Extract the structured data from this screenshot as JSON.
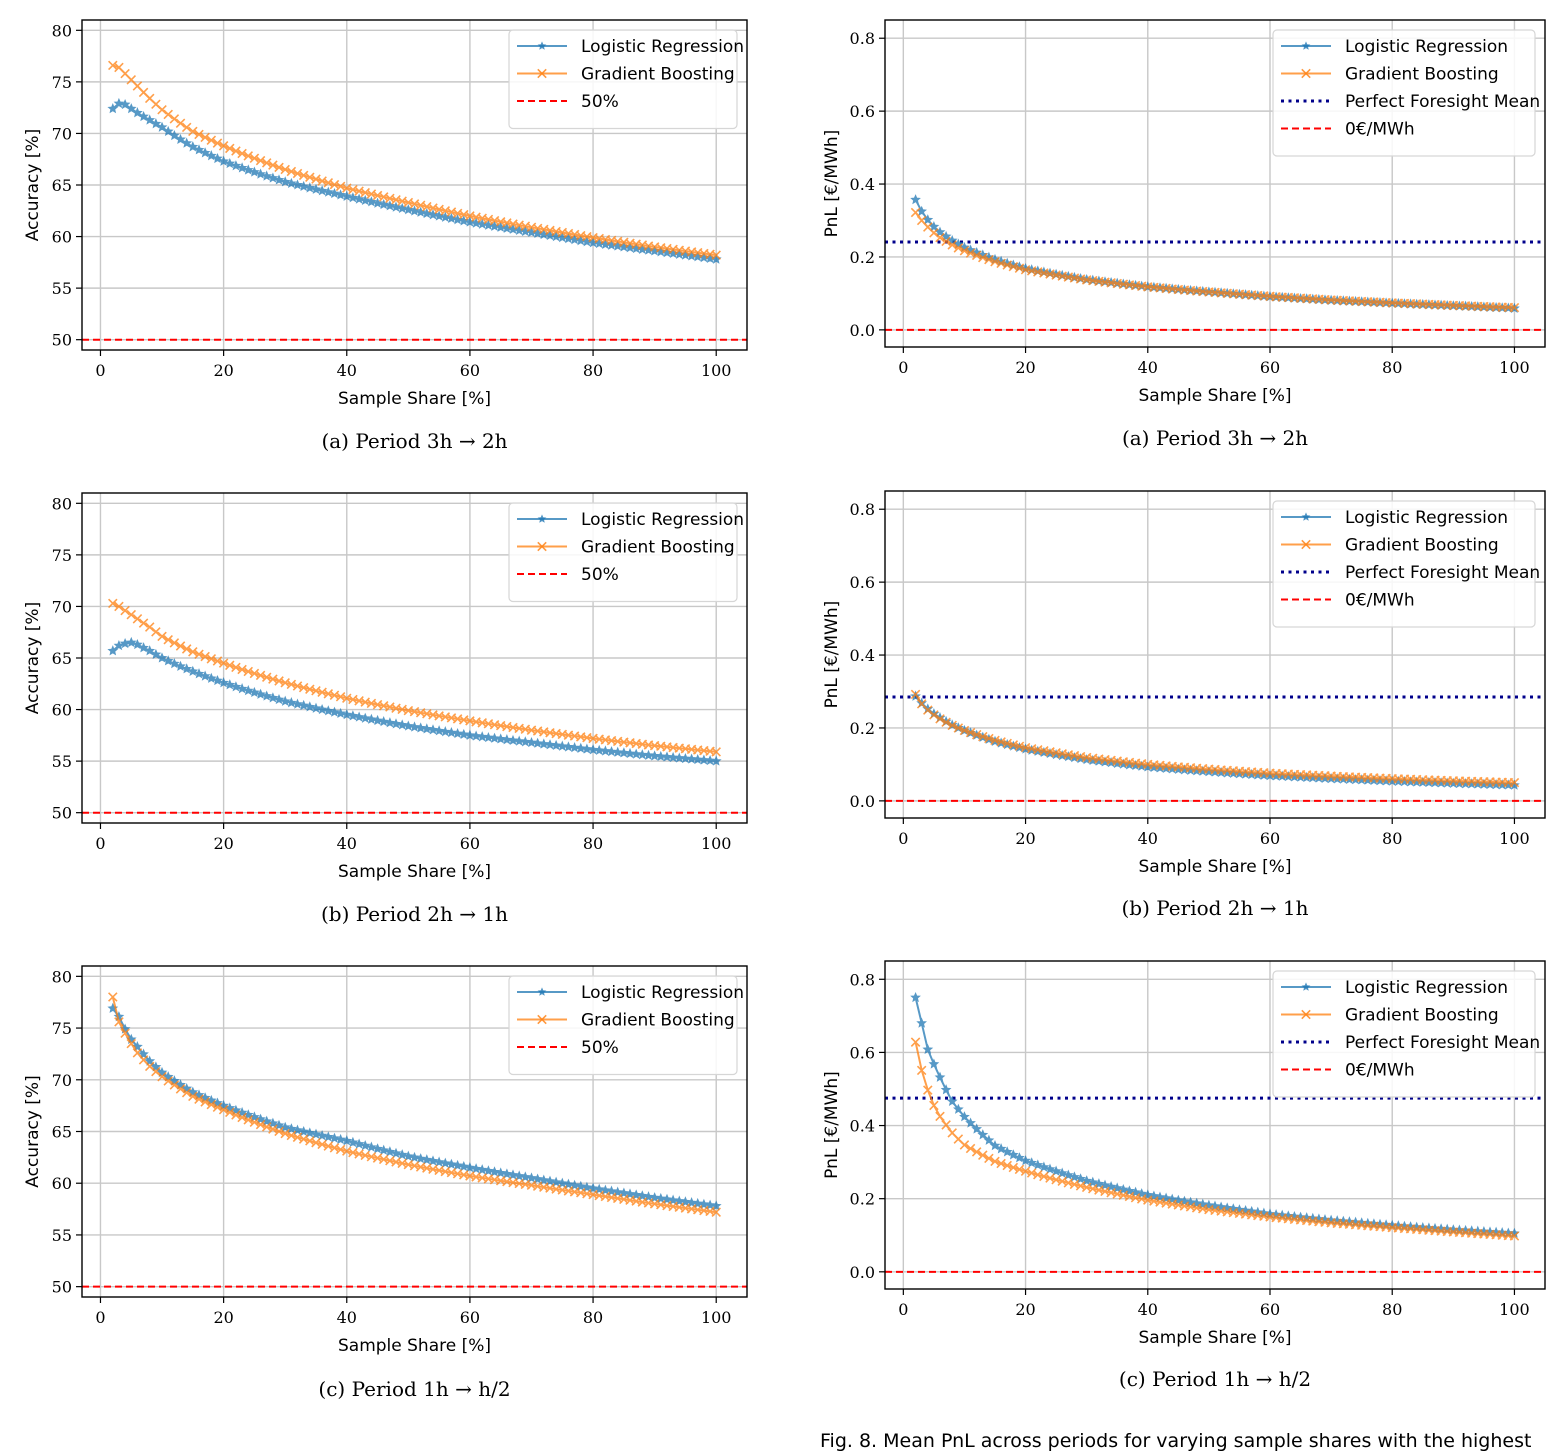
{
  "figure_caption": "Fig. 8.  Mean PnL across periods for varying sample shares with the highest",
  "chart_data": [
    {
      "id": "acc-a",
      "type": "line",
      "title": "",
      "caption": "(a) Period 3h → 2h",
      "xlabel": "Sample Share [%]",
      "ylabel": "Accuracy [%]",
      "xlim": [
        -3,
        105
      ],
      "ylim": [
        49,
        81
      ],
      "xticks": [
        0,
        20,
        40,
        60,
        80,
        100
      ],
      "yticks": [
        50,
        55,
        60,
        65,
        70,
        75,
        80
      ],
      "ytick_decimals": 0,
      "grid": true,
      "legend_position": "top-right",
      "x": [
        2,
        3,
        4,
        5,
        6,
        8,
        10,
        15,
        20,
        30,
        40,
        50,
        60,
        70,
        80,
        90,
        100
      ],
      "series": [
        {
          "name": "Logistic Regression",
          "color": "#1f77b4",
          "marker": "star",
          "values": [
            72.4,
            72.9,
            72.8,
            72.4,
            72.0,
            71.3,
            70.6,
            68.7,
            67.3,
            65.3,
            63.9,
            62.6,
            61.4,
            60.4,
            59.4,
            58.6,
            57.8
          ]
        },
        {
          "name": "Gradient Boosting",
          "color": "#ff7f0e",
          "marker": "x",
          "values": [
            76.6,
            76.4,
            75.8,
            75.2,
            74.6,
            73.4,
            72.3,
            70.2,
            68.8,
            66.5,
            64.7,
            63.3,
            62.0,
            60.9,
            59.9,
            59.0,
            58.2
          ]
        }
      ],
      "hlines": [
        {
          "name": "50%",
          "value": 50,
          "color": "#ff0000",
          "style": "dashed"
        }
      ]
    },
    {
      "id": "pnl-a",
      "type": "line",
      "title": "",
      "caption": "(a) Period 3h → 2h",
      "xlabel": "Sample Share [%]",
      "ylabel": "PnL [€/MWh]",
      "xlim": [
        -3,
        105
      ],
      "ylim": [
        -0.047,
        0.85
      ],
      "xticks": [
        0,
        20,
        40,
        60,
        80,
        100
      ],
      "yticks": [
        0.0,
        0.2,
        0.4,
        0.6,
        0.8
      ],
      "ytick_decimals": 1,
      "grid": true,
      "legend_position": "top-right",
      "x": [
        2,
        3,
        4,
        5,
        6,
        8,
        10,
        15,
        20,
        30,
        40,
        50,
        60,
        70,
        80,
        90,
        100
      ],
      "series": [
        {
          "name": "Logistic Regression",
          "color": "#1f77b4",
          "marker": "star",
          "values": [
            0.357,
            0.325,
            0.302,
            0.283,
            0.268,
            0.245,
            0.226,
            0.193,
            0.168,
            0.138,
            0.118,
            0.104,
            0.091,
            0.081,
            0.073,
            0.066,
            0.059
          ]
        },
        {
          "name": "Gradient Boosting",
          "color": "#ff7f0e",
          "marker": "x",
          "values": [
            0.322,
            0.3,
            0.282,
            0.266,
            0.253,
            0.233,
            0.217,
            0.187,
            0.165,
            0.137,
            0.118,
            0.104,
            0.092,
            0.082,
            0.074,
            0.067,
            0.061
          ]
        }
      ],
      "hlines": [
        {
          "name": "Perfect Foresight Mean",
          "value": 0.241,
          "color": "#00008b",
          "style": "dotted"
        },
        {
          "name": "0€/MWh",
          "value": 0.0,
          "color": "#ff0000",
          "style": "dashed"
        }
      ]
    },
    {
      "id": "acc-b",
      "type": "line",
      "title": "",
      "caption": "(b) Period 2h → 1h",
      "xlabel": "Sample Share [%]",
      "ylabel": "Accuracy [%]",
      "xlim": [
        -3,
        105
      ],
      "ylim": [
        49,
        81
      ],
      "xticks": [
        0,
        20,
        40,
        60,
        80,
        100
      ],
      "yticks": [
        50,
        55,
        60,
        65,
        70,
        75,
        80
      ],
      "ytick_decimals": 0,
      "grid": true,
      "legend_position": "top-right",
      "x": [
        2,
        3,
        4,
        5,
        6,
        8,
        10,
        15,
        20,
        30,
        40,
        50,
        60,
        70,
        80,
        90,
        100
      ],
      "series": [
        {
          "name": "Logistic Regression",
          "color": "#1f77b4",
          "marker": "star",
          "values": [
            65.7,
            66.2,
            66.4,
            66.5,
            66.3,
            65.7,
            65.0,
            63.7,
            62.6,
            60.8,
            59.5,
            58.4,
            57.5,
            56.8,
            56.1,
            55.5,
            55.0
          ]
        },
        {
          "name": "Gradient Boosting",
          "color": "#ff7f0e",
          "marker": "x",
          "values": [
            70.3,
            70.0,
            69.6,
            69.2,
            68.8,
            68.0,
            67.1,
            65.6,
            64.5,
            62.6,
            61.1,
            59.9,
            58.9,
            58.0,
            57.2,
            56.5,
            55.9
          ]
        }
      ],
      "hlines": [
        {
          "name": "50%",
          "value": 50,
          "color": "#ff0000",
          "style": "dashed"
        }
      ]
    },
    {
      "id": "pnl-b",
      "type": "line",
      "title": "",
      "caption": "(b) Period 2h → 1h",
      "xlabel": "Sample Share [%]",
      "ylabel": "PnL [€/MWh]",
      "xlim": [
        -3,
        105
      ],
      "ylim": [
        -0.047,
        0.85
      ],
      "xticks": [
        0,
        20,
        40,
        60,
        80,
        100
      ],
      "yticks": [
        0.0,
        0.2,
        0.4,
        0.6,
        0.8
      ],
      "ytick_decimals": 1,
      "grid": true,
      "legend_position": "top-right",
      "x": [
        2,
        3,
        4,
        5,
        6,
        8,
        10,
        15,
        20,
        30,
        40,
        50,
        60,
        70,
        80,
        90,
        100
      ],
      "series": [
        {
          "name": "Logistic Regression",
          "color": "#1f77b4",
          "marker": "star",
          "values": [
            0.287,
            0.268,
            0.252,
            0.239,
            0.228,
            0.208,
            0.193,
            0.163,
            0.142,
            0.113,
            0.093,
            0.08,
            0.069,
            0.061,
            0.054,
            0.048,
            0.043
          ]
        },
        {
          "name": "Gradient Boosting",
          "color": "#ff7f0e",
          "marker": "x",
          "values": [
            0.292,
            0.266,
            0.249,
            0.236,
            0.225,
            0.207,
            0.193,
            0.166,
            0.146,
            0.119,
            0.1,
            0.087,
            0.076,
            0.068,
            0.061,
            0.055,
            0.05
          ]
        }
      ],
      "hlines": [
        {
          "name": "Perfect Foresight Mean",
          "value": 0.285,
          "color": "#00008b",
          "style": "dotted"
        },
        {
          "name": "0€/MWh",
          "value": 0.0,
          "color": "#ff0000",
          "style": "dashed"
        }
      ]
    },
    {
      "id": "acc-c",
      "type": "line",
      "title": "",
      "caption": "(c) Period 1h → h/2",
      "xlabel": "Sample Share [%]",
      "ylabel": "Accuracy [%]",
      "xlim": [
        -3,
        105
      ],
      "ylim": [
        49,
        81
      ],
      "xticks": [
        0,
        20,
        40,
        60,
        80,
        100
      ],
      "yticks": [
        50,
        55,
        60,
        65,
        70,
        75,
        80
      ],
      "ytick_decimals": 0,
      "grid": true,
      "legend_position": "top-right",
      "x": [
        2,
        3,
        4,
        5,
        6,
        8,
        10,
        15,
        20,
        30,
        40,
        50,
        60,
        70,
        80,
        90,
        100
      ],
      "series": [
        {
          "name": "Logistic Regression",
          "color": "#1f77b4",
          "marker": "star",
          "values": [
            76.9,
            76.1,
            74.9,
            73.9,
            73.2,
            71.8,
            70.7,
            68.8,
            67.5,
            65.4,
            64.1,
            62.6,
            61.5,
            60.5,
            59.5,
            58.6,
            57.8
          ]
        },
        {
          "name": "Gradient Boosting",
          "color": "#ff7f0e",
          "marker": "x",
          "values": [
            78.0,
            75.6,
            74.5,
            73.5,
            72.6,
            71.3,
            70.3,
            68.4,
            67.1,
            64.8,
            63.1,
            61.8,
            60.7,
            59.8,
            58.9,
            58.0,
            57.2
          ]
        }
      ],
      "hlines": [
        {
          "name": "50%",
          "value": 50,
          "color": "#ff0000",
          "style": "dashed"
        }
      ]
    },
    {
      "id": "pnl-c",
      "type": "line",
      "title": "",
      "caption": "(c) Period 1h → h/2",
      "xlabel": "Sample Share [%]",
      "ylabel": "PnL [€/MWh]",
      "xlim": [
        -3,
        105
      ],
      "ylim": [
        -0.047,
        0.85
      ],
      "xticks": [
        0,
        20,
        40,
        60,
        80,
        100
      ],
      "yticks": [
        0.0,
        0.2,
        0.4,
        0.6,
        0.8
      ],
      "ytick_decimals": 1,
      "grid": true,
      "legend_position": "top-right",
      "x": [
        2,
        3,
        4,
        5,
        6,
        8,
        10,
        15,
        20,
        30,
        40,
        50,
        60,
        70,
        80,
        90,
        100
      ],
      "series": [
        {
          "name": "Logistic Regression",
          "color": "#1f77b4",
          "marker": "star",
          "values": [
            0.75,
            0.68,
            0.608,
            0.568,
            0.532,
            0.466,
            0.424,
            0.345,
            0.304,
            0.249,
            0.21,
            0.182,
            0.158,
            0.141,
            0.127,
            0.115,
            0.105
          ]
        },
        {
          "name": "Gradient Boosting",
          "color": "#ff7f0e",
          "marker": "x",
          "values": [
            0.628,
            0.551,
            0.497,
            0.455,
            0.425,
            0.38,
            0.347,
            0.302,
            0.275,
            0.231,
            0.196,
            0.17,
            0.15,
            0.134,
            0.121,
            0.109,
            0.098
          ]
        }
      ],
      "hlines": [
        {
          "name": "Perfect Foresight Mean",
          "value": 0.475,
          "color": "#00008b",
          "style": "dotted"
        },
        {
          "name": "0€/MWh",
          "value": 0.0,
          "color": "#ff0000",
          "style": "dashed"
        }
      ]
    }
  ]
}
